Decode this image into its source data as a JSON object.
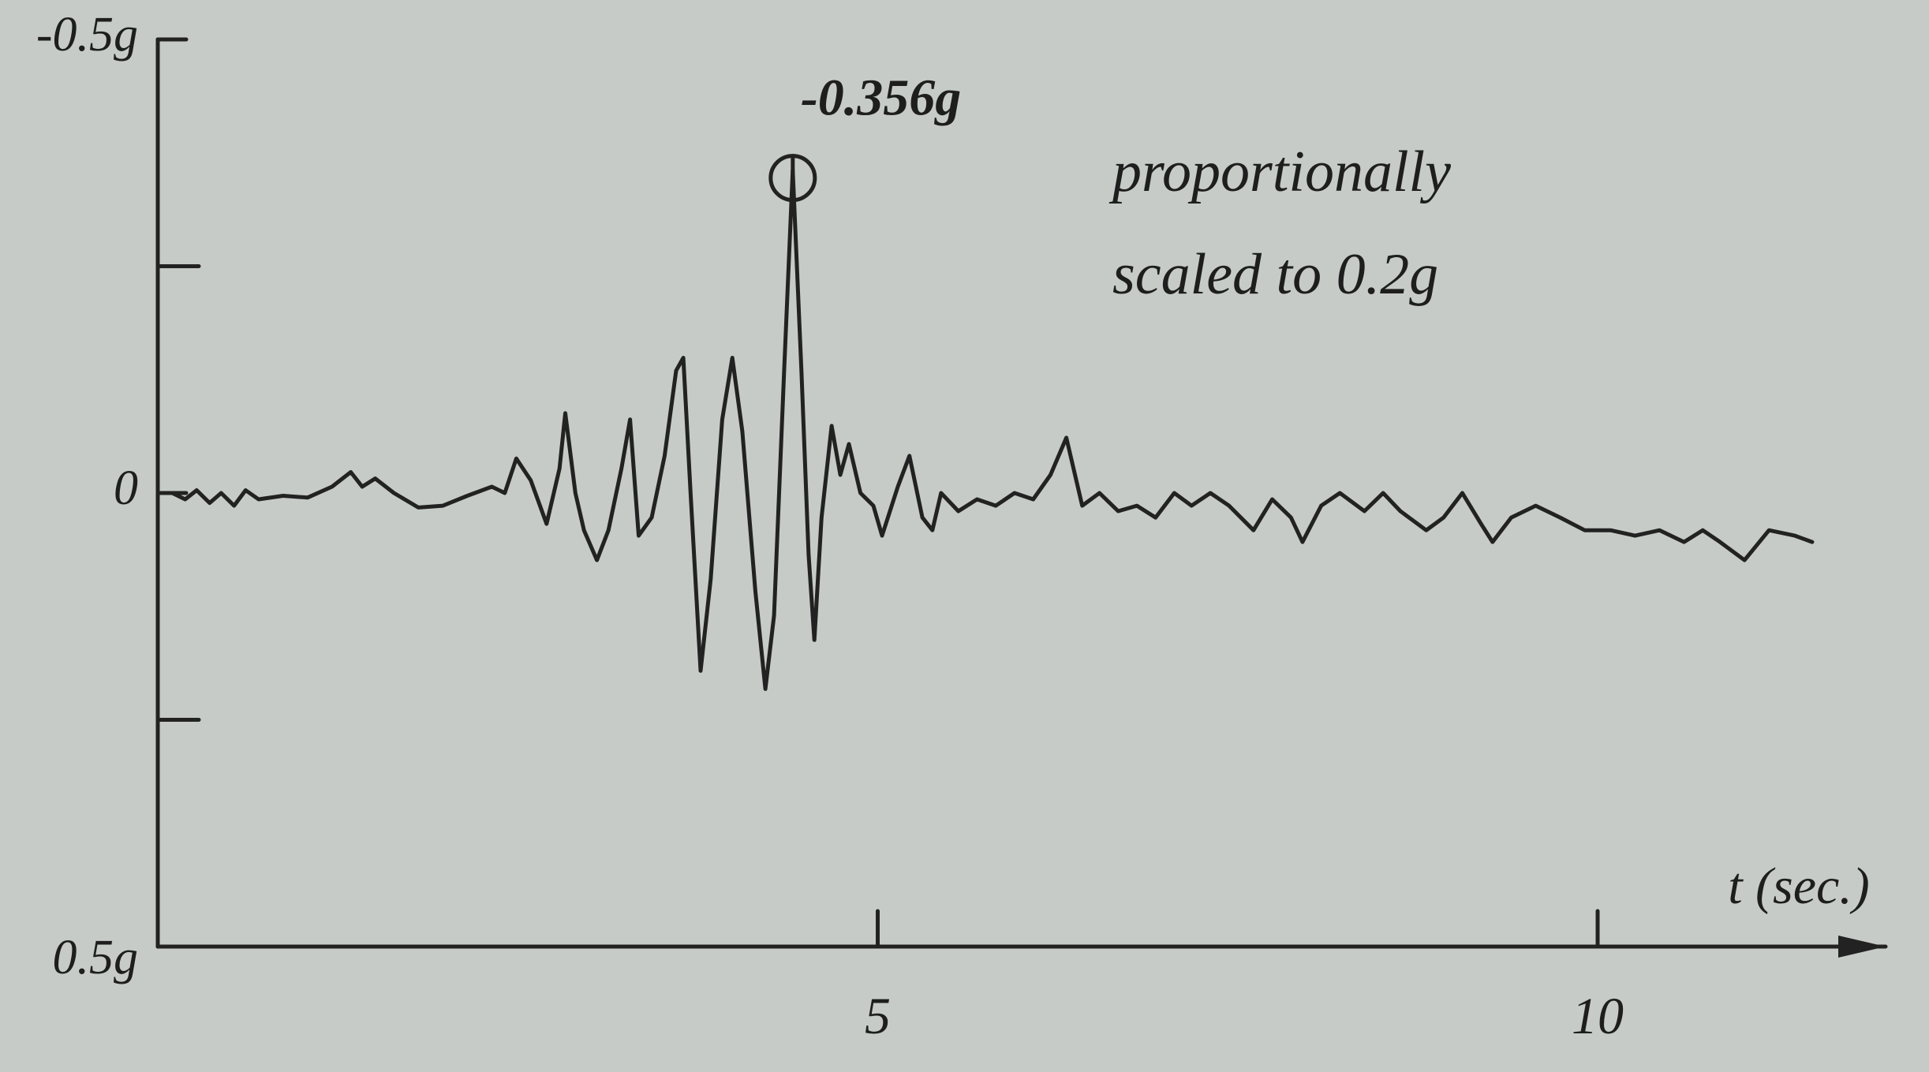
{
  "chart_data": {
    "type": "line",
    "color": "#222222",
    "x_label": "t (sec.)",
    "peak_label": "-0.356g",
    "note": [
      "proportionally",
      "scaled to 0.2g"
    ],
    "y_inverted": true,
    "xlim": [
      0,
      12
    ],
    "xticks": [
      5,
      10
    ],
    "ylim": [
      -0.5,
      0.5
    ],
    "yticks": [
      {
        "value": -0.5,
        "label": "-0.5g"
      },
      0,
      {
        "value": 0.5,
        "label": "0.5g"
      }
    ],
    "y_minor_ticks": [
      -0.25,
      0.25
    ],
    "x": [
      0.1,
      0.19,
      0.27,
      0.36,
      0.44,
      0.53,
      0.61,
      0.7,
      0.87,
      1.04,
      1.21,
      1.34,
      1.42,
      1.51,
      1.64,
      1.81,
      1.98,
      2.15,
      2.32,
      2.41,
      2.49,
      2.59,
      2.7,
      2.79,
      2.83,
      2.9,
      2.96,
      3.05,
      3.13,
      3.22,
      3.28,
      3.34,
      3.43,
      3.52,
      3.6,
      3.65,
      3.7,
      3.77,
      3.84,
      3.92,
      3.99,
      4.06,
      4.15,
      4.22,
      4.28,
      4.35,
      4.41,
      4.47,
      4.52,
      4.56,
      4.61,
      4.68,
      4.74,
      4.8,
      4.88,
      4.97,
      5.03,
      5.14,
      5.22,
      5.31,
      5.38,
      5.44,
      5.56,
      5.69,
      5.82,
      5.95,
      6.08,
      6.2,
      6.31,
      6.42,
      6.54,
      6.67,
      6.8,
      6.93,
      7.06,
      7.18,
      7.31,
      7.44,
      7.61,
      7.74,
      7.87,
      7.95,
      8.08,
      8.21,
      8.38,
      8.51,
      8.63,
      8.81,
      8.93,
      9.06,
      9.19,
      9.27,
      9.4,
      9.57,
      9.74,
      9.91,
      10.09,
      10.26,
      10.43,
      10.6,
      10.73,
      10.85,
      11.02,
      11.19,
      11.37,
      11.49
    ],
    "values": [
      0,
      0.007,
      -0.003,
      0.011,
      0,
      0.014,
      -0.003,
      0.007,
      0.003,
      0.005,
      -0.007,
      -0.023,
      -0.007,
      -0.016,
      0,
      0.016,
      0.014,
      0.003,
      -0.007,
      0,
      -0.038,
      -0.014,
      0.034,
      -0.027,
      -0.088,
      0,
      0.041,
      0.074,
      0.041,
      -0.027,
      -0.081,
      0.047,
      0.027,
      -0.041,
      -0.135,
      -0.149,
      0,
      0.196,
      0.095,
      -0.081,
      -0.149,
      -0.068,
      0.108,
      0.216,
      0.135,
      -0.135,
      -0.356,
      -0.135,
      0.068,
      0.162,
      0.027,
      -0.074,
      -0.02,
      -0.054,
      0,
      0.014,
      0.047,
      -0.007,
      -0.041,
      0.027,
      0.041,
      0,
      0.02,
      0.007,
      0.014,
      0,
      0.007,
      -0.02,
      -0.061,
      0.014,
      0,
      0.02,
      0.014,
      0.027,
      0,
      0.014,
      0,
      0.014,
      0.041,
      0.007,
      0.027,
      0.054,
      0.014,
      0,
      0.02,
      0,
      0.02,
      0.041,
      0.027,
      0,
      0.034,
      0.054,
      0.027,
      0.014,
      0.027,
      0.041,
      0.041,
      0.047,
      0.041,
      0.054,
      0.041,
      0.054,
      0.074,
      0.041,
      0.047,
      0.054
    ]
  }
}
